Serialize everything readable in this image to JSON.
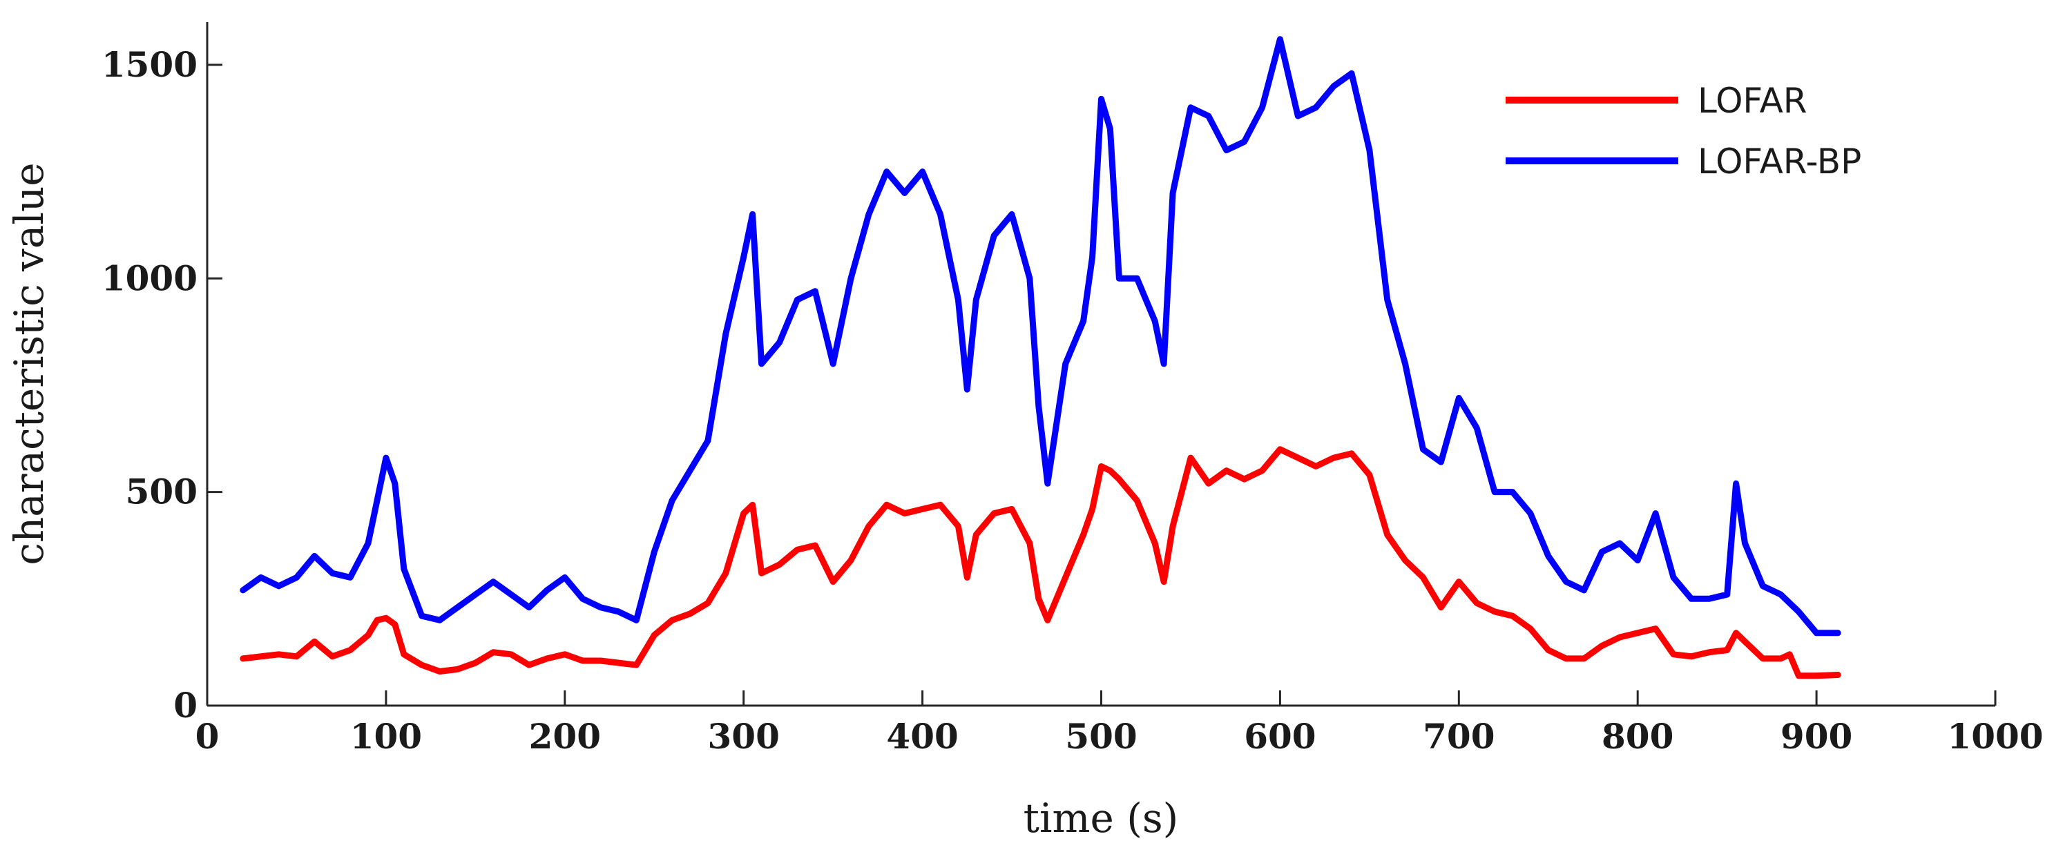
{
  "chart_data": {
    "type": "line",
    "title": "",
    "xlabel": "time (s)",
    "ylabel": "characteristic value",
    "xlim": [
      0,
      1000
    ],
    "ylim": [
      0,
      1600
    ],
    "x_ticks": [
      0,
      100,
      200,
      300,
      400,
      500,
      600,
      700,
      800,
      900,
      1000
    ],
    "y_ticks": [
      0,
      500,
      1000,
      1500
    ],
    "grid": false,
    "legend_position": "top-right",
    "x": [
      20,
      30,
      40,
      50,
      60,
      70,
      80,
      90,
      95,
      100,
      105,
      110,
      120,
      130,
      140,
      150,
      160,
      170,
      180,
      190,
      200,
      210,
      220,
      230,
      240,
      250,
      260,
      270,
      280,
      290,
      300,
      305,
      310,
      320,
      330,
      340,
      350,
      360,
      370,
      380,
      390,
      400,
      410,
      420,
      425,
      430,
      440,
      450,
      460,
      465,
      470,
      480,
      490,
      495,
      500,
      505,
      510,
      520,
      530,
      535,
      540,
      550,
      560,
      570,
      580,
      590,
      600,
      610,
      620,
      630,
      640,
      650,
      660,
      670,
      680,
      690,
      700,
      710,
      720,
      730,
      740,
      750,
      760,
      770,
      780,
      790,
      800,
      810,
      820,
      830,
      840,
      850,
      855,
      860,
      870,
      880,
      885,
      890,
      900,
      912
    ],
    "series": [
      {
        "name": "LOFAR",
        "color": "#ff0000",
        "values": [
          110,
          115,
          120,
          115,
          150,
          115,
          130,
          165,
          200,
          205,
          190,
          120,
          95,
          80,
          85,
          100,
          125,
          120,
          95,
          110,
          120,
          105,
          105,
          100,
          95,
          165,
          200,
          215,
          240,
          310,
          450,
          470,
          310,
          330,
          365,
          375,
          290,
          340,
          420,
          470,
          450,
          460,
          470,
          420,
          300,
          400,
          450,
          460,
          380,
          250,
          200,
          300,
          400,
          460,
          560,
          550,
          530,
          480,
          380,
          290,
          420,
          580,
          520,
          550,
          530,
          550,
          600,
          580,
          560,
          580,
          590,
          540,
          400,
          340,
          300,
          230,
          290,
          240,
          220,
          210,
          180,
          130,
          110,
          110,
          140,
          160,
          170,
          180,
          120,
          115,
          125,
          130,
          170,
          150,
          110,
          110,
          120,
          70,
          70,
          72
        ]
      },
      {
        "name": "LOFAR-BP",
        "color": "#0000ff",
        "values": [
          270,
          300,
          280,
          300,
          350,
          310,
          300,
          380,
          480,
          580,
          520,
          320,
          210,
          200,
          230,
          260,
          290,
          260,
          230,
          270,
          300,
          250,
          230,
          220,
          200,
          360,
          480,
          550,
          620,
          870,
          1050,
          1150,
          800,
          850,
          950,
          970,
          800,
          1000,
          1150,
          1250,
          1200,
          1250,
          1150,
          950,
          740,
          950,
          1100,
          1150,
          1000,
          700,
          520,
          800,
          900,
          1050,
          1420,
          1350,
          1000,
          1000,
          900,
          800,
          1200,
          1400,
          1380,
          1300,
          1320,
          1400,
          1560,
          1380,
          1400,
          1450,
          1480,
          1300,
          950,
          800,
          600,
          570,
          720,
          650,
          500,
          500,
          450,
          350,
          290,
          270,
          360,
          380,
          340,
          450,
          300,
          250,
          250,
          260,
          520,
          380,
          280,
          260,
          240,
          220,
          170,
          170
        ]
      }
    ]
  }
}
